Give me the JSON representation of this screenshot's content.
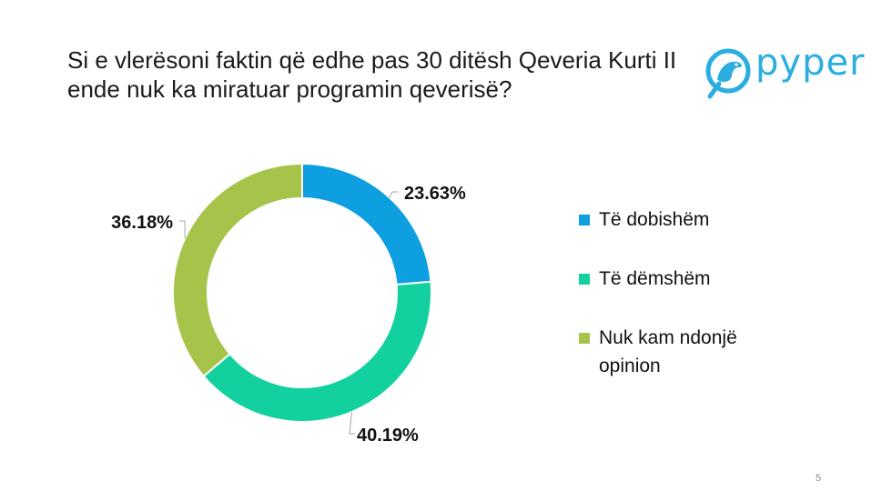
{
  "slide": {
    "title_line1": "Si e vlerësoni faktin që edhe pas 30 ditësh Qeveria Kurti II",
    "title_line2": "ende nuk ka miratuar programin qeverisë?",
    "logo_text": "pyper",
    "page_number": "5"
  },
  "colors": {
    "accent_logo": "#2aaee0",
    "series": [
      "#0d9fe0",
      "#13d19e",
      "#a5c449"
    ]
  },
  "chart_data": {
    "type": "pie",
    "variant": "donut",
    "title": "Si e vlerësoni faktin që edhe pas 30 ditësh Qeveria Kurti II ende nuk ka miratuar programin qeverisë?",
    "categories": [
      "Të dobishëm",
      "Të dëmshëm",
      "Nuk kam ndonjë opinion"
    ],
    "values": [
      23.63,
      40.19,
      36.18
    ],
    "labels": [
      "23.63%",
      "40.19%",
      "36.18%"
    ],
    "legend_position": "right"
  }
}
